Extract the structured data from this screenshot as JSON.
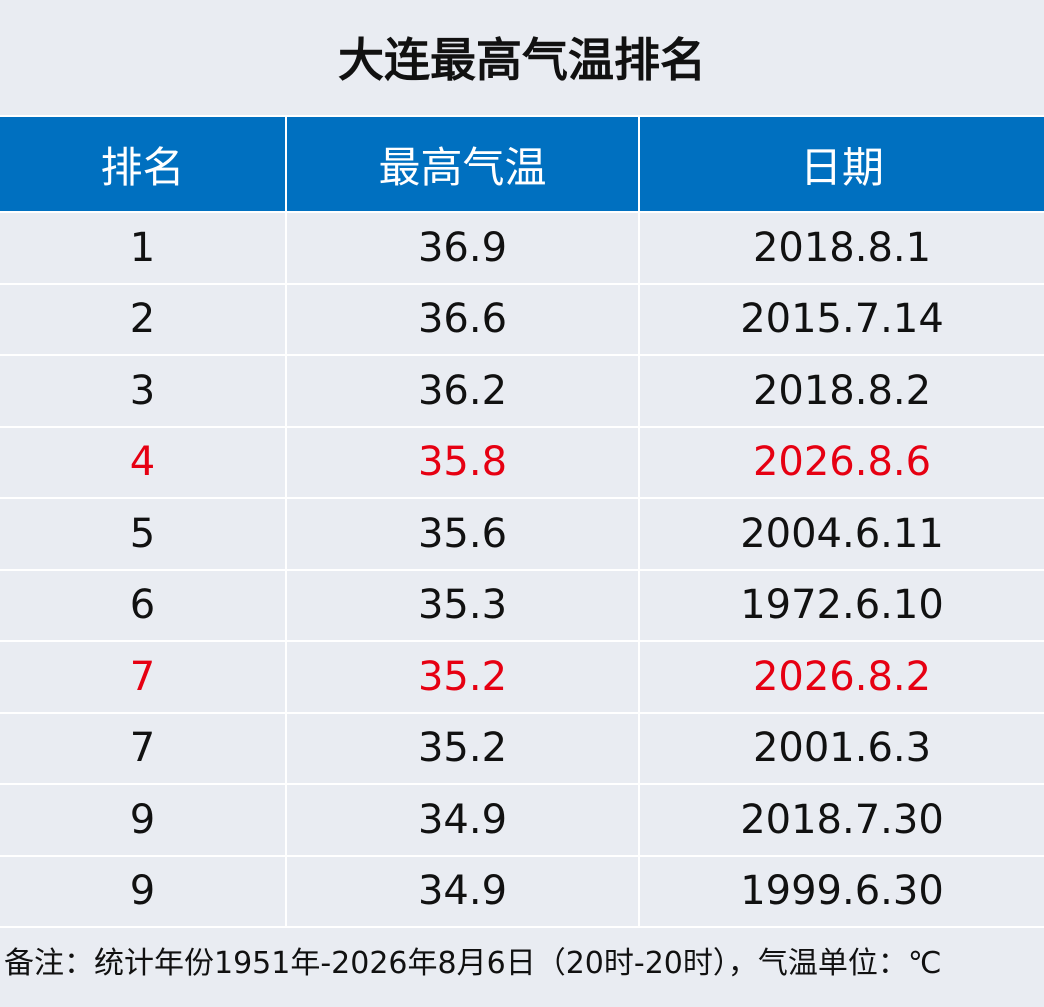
{
  "title": "大连最高气温排名",
  "table": {
    "header": [
      "排名",
      "最高气温",
      "日期"
    ],
    "rows": [
      {
        "cells": [
          "1",
          "36.9",
          "2018.8.1"
        ]
      },
      {
        "cells": [
          "2",
          "36.6",
          "2015.7.14"
        ]
      },
      {
        "cells": [
          "3",
          "36.2",
          "2018.8.2"
        ]
      },
      {
        "cells": [
          "4",
          "35.8",
          "2026.8.6"
        ],
        "color": "#e60012"
      },
      {
        "cells": [
          "5",
          "35.6",
          "2004.6.11"
        ]
      },
      {
        "cells": [
          "6",
          "35.3",
          "1972.6.10"
        ]
      },
      {
        "cells": [
          "7",
          "35.2",
          "2026.8.2"
        ],
        "color": "#e60012"
      },
      {
        "cells": [
          "7",
          "35.2",
          "2001.6.3"
        ]
      },
      {
        "cells": [
          "9",
          "34.9",
          "2018.7.30"
        ]
      },
      {
        "cells": [
          "9",
          "34.9",
          "1999.6.30"
        ]
      }
    ]
  },
  "note": "备注：统计年份1951年-2026年8月6日（20时-20时），气温单位：℃"
}
